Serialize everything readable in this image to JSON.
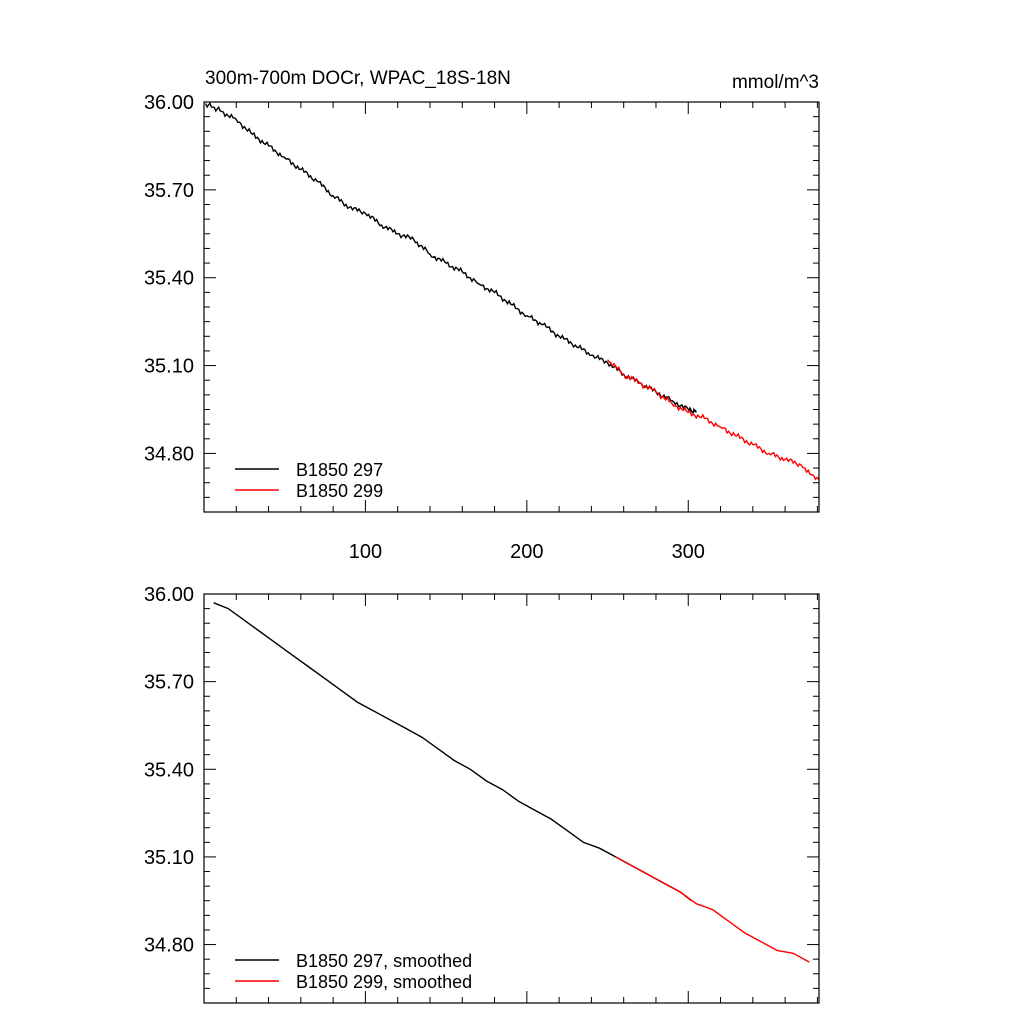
{
  "chart_data": [
    {
      "type": "line",
      "title": "300m-700m DOCr, WPAC_18S-18N",
      "units": "mmol/m^3",
      "xlim": [
        0,
        381
      ],
      "ylim": [
        34.6,
        36.0
      ],
      "xticks": [
        100,
        200,
        300
      ],
      "xtick_labels": [
        "100",
        "200",
        "300"
      ],
      "yticks": [
        36.0,
        35.7,
        35.4,
        35.1,
        34.8
      ],
      "ytick_labels": [
        "36.00",
        "35.70",
        "35.40",
        "35.10",
        "34.80"
      ],
      "legend_position": "bottom-left",
      "series": [
        {
          "name": "B1850 297",
          "color": "#000000",
          "x": [
            1,
            10,
            20,
            30,
            40,
            50,
            60,
            70,
            80,
            90,
            100,
            110,
            120,
            130,
            140,
            150,
            160,
            170,
            180,
            190,
            200,
            210,
            220,
            230,
            240,
            250,
            260,
            270,
            280,
            290,
            300,
            305
          ],
          "y": [
            35.995,
            35.97,
            35.94,
            35.89,
            35.85,
            35.81,
            35.77,
            35.73,
            35.68,
            35.64,
            35.62,
            35.58,
            35.55,
            35.53,
            35.48,
            35.45,
            35.42,
            35.38,
            35.35,
            35.31,
            35.27,
            35.24,
            35.2,
            35.17,
            35.135,
            35.11,
            35.07,
            35.04,
            35.01,
            34.98,
            34.95,
            34.94
          ]
        },
        {
          "name": "B1850 299",
          "color": "#ff0000",
          "x": [
            250,
            260,
            270,
            280,
            290,
            300,
            310,
            320,
            330,
            340,
            350,
            360,
            370,
            381
          ],
          "y": [
            35.12,
            35.07,
            35.04,
            35.01,
            34.97,
            34.94,
            34.92,
            34.89,
            34.86,
            34.83,
            34.8,
            34.78,
            34.76,
            34.71
          ]
        }
      ]
    },
    {
      "type": "line",
      "title": "",
      "xlim": [
        0,
        381
      ],
      "ylim": [
        34.6,
        36.0
      ],
      "yticks": [
        36.0,
        35.7,
        35.4,
        35.1,
        34.8
      ],
      "ytick_labels": [
        "36.00",
        "35.70",
        "35.40",
        "35.10",
        "34.80"
      ],
      "legend_position": "bottom-left",
      "series": [
        {
          "name": "B1850 297, smoothed",
          "color": "#000000",
          "x": [
            6,
            15,
            25,
            35,
            45,
            55,
            65,
            75,
            85,
            95,
            105,
            115,
            125,
            135,
            145,
            155,
            165,
            175,
            185,
            195,
            205,
            215,
            225,
            235,
            245,
            255,
            265,
            275,
            285,
            295,
            302
          ],
          "y": [
            35.97,
            35.95,
            35.91,
            35.87,
            35.83,
            35.79,
            35.75,
            35.71,
            35.67,
            35.63,
            35.6,
            35.57,
            35.54,
            35.51,
            35.47,
            35.43,
            35.4,
            35.36,
            35.33,
            35.29,
            35.26,
            35.23,
            35.19,
            35.15,
            35.13,
            35.1,
            35.07,
            35.04,
            35.01,
            34.98,
            34.95
          ]
        },
        {
          "name": "B1850 299, smoothed",
          "color": "#ff0000",
          "x": [
            255,
            265,
            275,
            285,
            295,
            305,
            315,
            325,
            335,
            345,
            355,
            365,
            375
          ],
          "y": [
            35.1,
            35.07,
            35.04,
            35.01,
            34.98,
            34.94,
            34.92,
            34.88,
            34.84,
            34.81,
            34.78,
            34.77,
            34.74
          ]
        }
      ]
    }
  ]
}
